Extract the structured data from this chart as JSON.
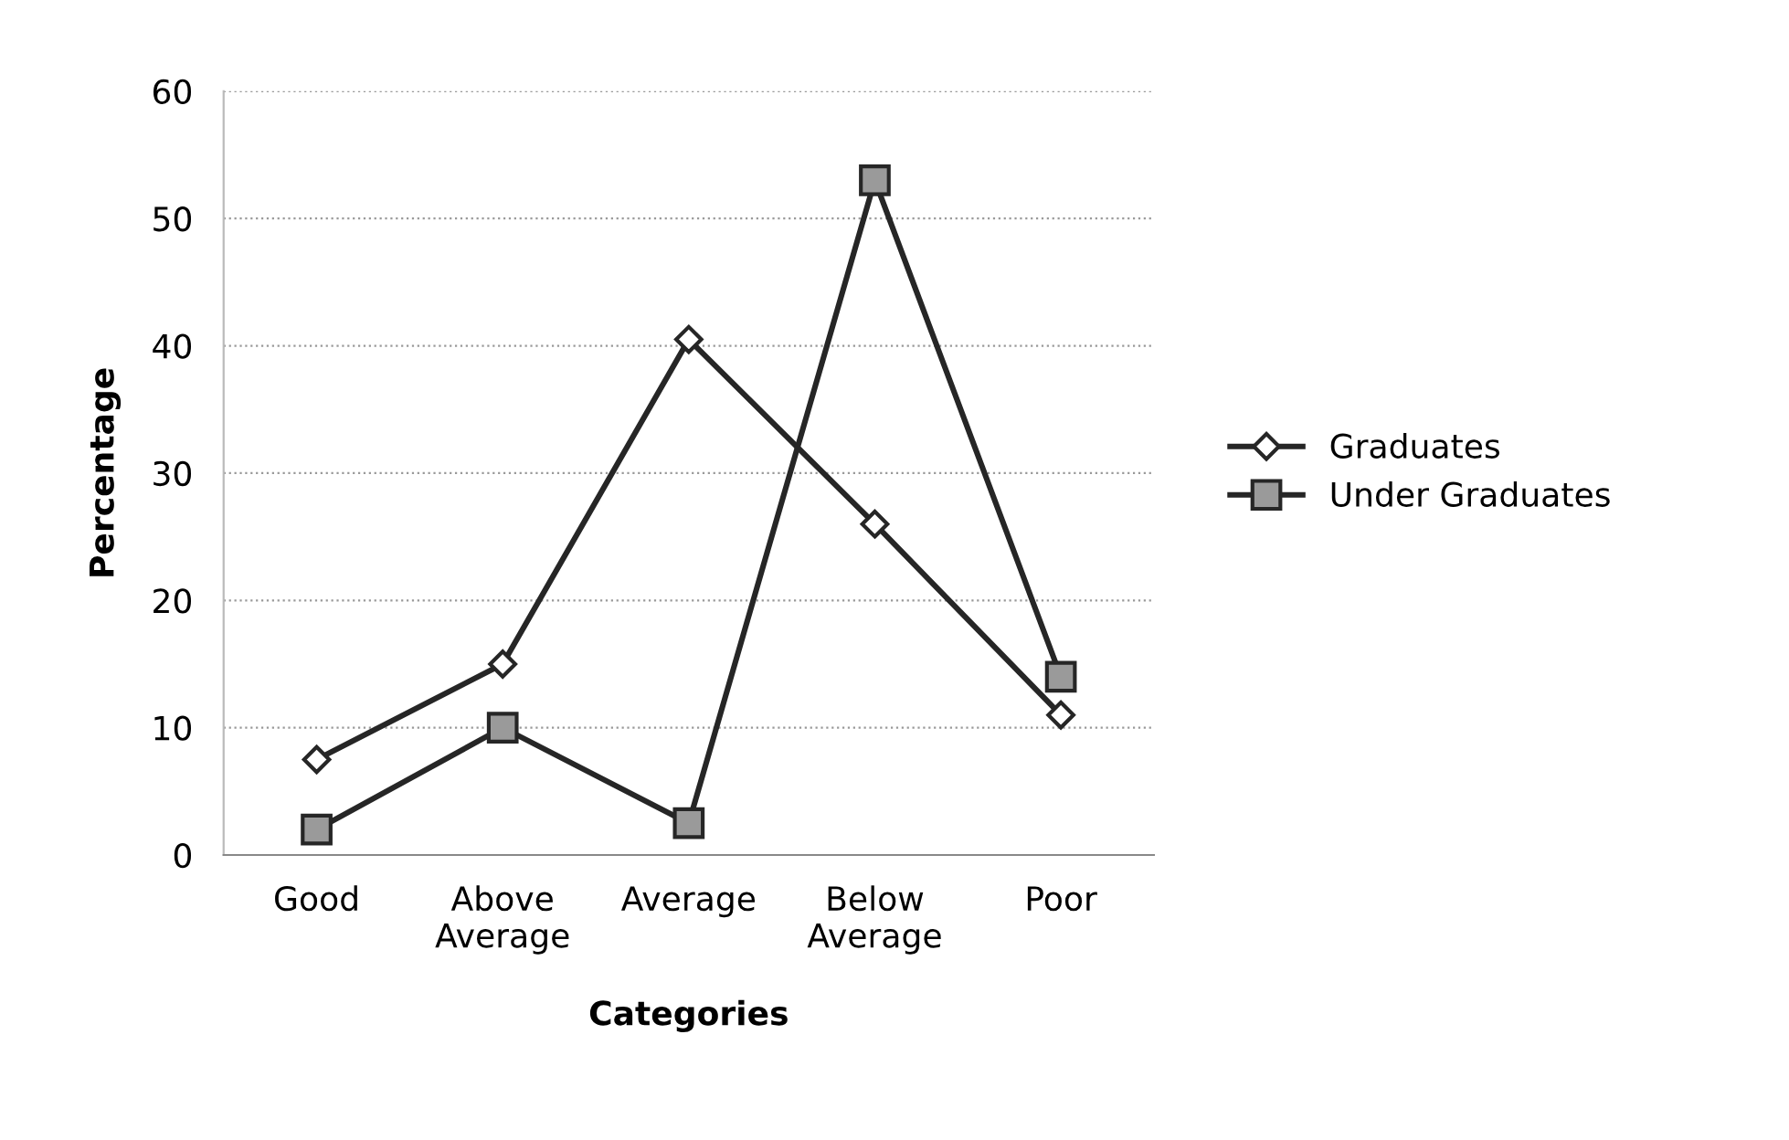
{
  "chart_data": {
    "type": "line",
    "xlabel": "Categories",
    "ylabel": "Percentage",
    "categories": [
      "Good",
      "Above\nAverage",
      "Average",
      "Below\nAverage",
      "Poor"
    ],
    "series": [
      {
        "name": "Graduates",
        "color": "#262626",
        "marker": "diamond",
        "values": [
          7.5,
          15,
          40.5,
          26,
          11
        ]
      },
      {
        "name": "Under Graduates",
        "color": "#262626",
        "marker": "square",
        "values": [
          2,
          10,
          2.5,
          53,
          14
        ]
      }
    ],
    "ylim": [
      0,
      60
    ],
    "yticks": [
      0,
      10,
      20,
      30,
      40,
      50,
      60
    ],
    "grid": "y",
    "legend": "right",
    "line_style": "solid"
  }
}
